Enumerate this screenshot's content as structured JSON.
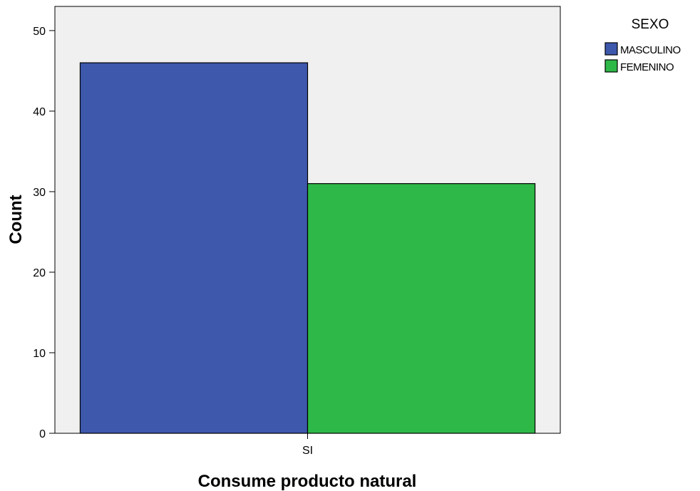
{
  "chart_data": {
    "type": "bar",
    "title": "",
    "xlabel": "Consume producto natural",
    "ylabel": "Count",
    "categories": [
      "SI"
    ],
    "series": [
      {
        "name": "MASCULINO",
        "values": [
          46
        ],
        "color": "#3e58ac"
      },
      {
        "name": "FEMENINO",
        "values": [
          31
        ],
        "color": "#2eb848"
      }
    ],
    "ylim": [
      0,
      53
    ],
    "yticks": [
      0,
      10,
      20,
      30,
      40,
      50
    ],
    "grid": false,
    "legend": {
      "title": "SEXO",
      "position": "top-right"
    },
    "plot_background": "#f0f0f0"
  }
}
